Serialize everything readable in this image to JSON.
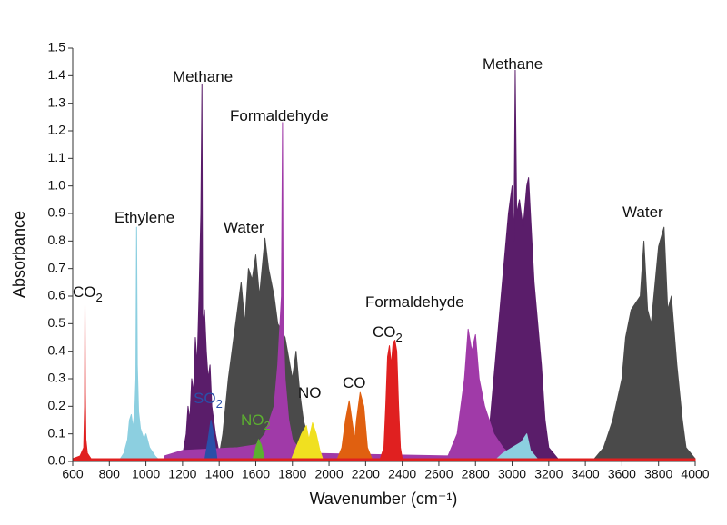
{
  "chart_data": {
    "type": "area",
    "x_label": "Wavenumber (cm⁻¹)",
    "y_label": "Absorbance",
    "xlim": [
      600,
      4000
    ],
    "xticks": [
      600,
      800,
      1000,
      1200,
      1400,
      1600,
      1800,
      2000,
      2200,
      2400,
      2600,
      2800,
      3000,
      3200,
      3400,
      3600,
      3800,
      4000
    ],
    "ylim": [
      0,
      1.5
    ],
    "yticks": [
      {
        "value": 0,
        "label": "0.0"
      },
      0.1,
      0.2,
      0.3,
      0.4,
      0.5,
      0.6,
      0.7,
      0.8,
      0.9,
      {
        "value": 1,
        "label": "1.0"
      },
      1.1,
      1.2,
      1.3,
      1.4,
      1.5
    ],
    "series": [
      {
        "color": "#4a4a4a",
        "x": [
          1400,
          1420,
          1450,
          1480,
          1500,
          1520,
          1540,
          1560,
          1580,
          1600,
          1620,
          1650,
          1670,
          1700,
          1720,
          1760,
          1800,
          1820,
          1840,
          1860,
          1900,
          1950,
          3450,
          3500,
          3550,
          3600,
          3620,
          3650,
          3700,
          3720,
          3740,
          3760,
          3800,
          3830,
          3850,
          3870,
          3900,
          3930,
          3950,
          4000
        ],
        "values": [
          0.02,
          0.1,
          0.3,
          0.45,
          0.55,
          0.65,
          0.5,
          0.7,
          0.66,
          0.75,
          0.6,
          0.81,
          0.7,
          0.6,
          0.5,
          0.45,
          0.3,
          0.4,
          0.25,
          0.15,
          0.05,
          0.01,
          0.01,
          0.05,
          0.15,
          0.3,
          0.45,
          0.55,
          0.6,
          0.8,
          0.55,
          0.5,
          0.78,
          0.85,
          0.55,
          0.6,
          0.35,
          0.15,
          0.05,
          0.01
        ]
      },
      {
        "color": "#5a1d6a",
        "x": [
          1200,
          1220,
          1230,
          1240,
          1250,
          1260,
          1270,
          1280,
          1290,
          1300,
          1306,
          1310,
          1320,
          1330,
          1340,
          1350,
          1360,
          1370,
          1380,
          1400,
          1450,
          2800,
          2850,
          2880,
          2900,
          2920,
          2940,
          2960,
          2980,
          3000,
          3010,
          3017,
          3025,
          3040,
          3060,
          3080,
          3090,
          3100,
          3120,
          3140,
          3160,
          3180,
          3200,
          3250
        ],
        "values": [
          0.02,
          0.1,
          0.2,
          0.15,
          0.3,
          0.25,
          0.45,
          0.35,
          0.6,
          0.9,
          1.37,
          0.5,
          0.55,
          0.4,
          0.3,
          0.35,
          0.2,
          0.15,
          0.1,
          0.03,
          0.01,
          0.01,
          0.05,
          0.15,
          0.3,
          0.45,
          0.6,
          0.75,
          0.9,
          1.0,
          0.8,
          1.42,
          0.9,
          0.95,
          0.85,
          1.0,
          1.03,
          0.9,
          0.65,
          0.5,
          0.35,
          0.15,
          0.05,
          0.01
        ]
      },
      {
        "color": "#a03aa8",
        "x": [
          1100,
          1200,
          1500,
          1600,
          1650,
          1700,
          1720,
          1740,
          1746,
          1750,
          1760,
          1780,
          1800,
          1850,
          2650,
          2700,
          2740,
          2760,
          2780,
          2800,
          2820,
          2850,
          2900,
          2950,
          3000
        ],
        "values": [
          0.02,
          0.04,
          0.05,
          0.06,
          0.1,
          0.2,
          0.35,
          0.6,
          1.23,
          0.5,
          0.3,
          0.15,
          0.08,
          0.03,
          0.02,
          0.1,
          0.3,
          0.48,
          0.4,
          0.46,
          0.3,
          0.2,
          0.1,
          0.05,
          0.02
        ]
      },
      {
        "color": "#8ccfe0",
        "x": [
          850,
          880,
          900,
          910,
          920,
          930,
          940,
          945,
          949,
          953,
          960,
          970,
          980,
          990,
          1000,
          1020,
          1050,
          1080,
          2900,
          2950,
          3000,
          3050,
          3080,
          3100,
          3150
        ],
        "values": [
          0,
          0.03,
          0.08,
          0.15,
          0.17,
          0.12,
          0.2,
          0.3,
          0.85,
          0.35,
          0.18,
          0.12,
          0.1,
          0.08,
          0.1,
          0.05,
          0.02,
          0,
          0,
          0.03,
          0.05,
          0.07,
          0.1,
          0.04,
          0
        ]
      },
      {
        "color": "#2a4fa8",
        "x": [
          1320,
          1340,
          1355,
          1370,
          1390
        ],
        "values": [
          0,
          0.08,
          0.15,
          0.1,
          0
        ]
      },
      {
        "color": "#5cb030",
        "x": [
          1580,
          1600,
          1615,
          1630,
          1650
        ],
        "values": [
          0,
          0.05,
          0.08,
          0.06,
          0
        ]
      },
      {
        "color": "#f0e020",
        "x": [
          1790,
          1820,
          1850,
          1876,
          1890,
          1910,
          1930,
          1950,
          1970
        ],
        "values": [
          0,
          0.05,
          0.1,
          0.13,
          0.08,
          0.14,
          0.1,
          0.04,
          0
        ]
      },
      {
        "color": "#e06010",
        "x": [
          2040,
          2070,
          2090,
          2110,
          2140,
          2150,
          2170,
          2190,
          2210,
          2240
        ],
        "values": [
          0,
          0.05,
          0.15,
          0.22,
          0.08,
          0.15,
          0.25,
          0.2,
          0.05,
          0
        ]
      },
      {
        "color": "#e02020",
        "x": [
          600,
          640,
          660,
          665,
          667,
          669,
          672,
          680,
          700,
          2280,
          2300,
          2310,
          2320,
          2330,
          2340,
          2350,
          2360,
          2370,
          2380,
          2390,
          2400,
          4000
        ],
        "values": [
          0.01,
          0.02,
          0.05,
          0.2,
          0.57,
          0.25,
          0.08,
          0.03,
          0.01,
          0.01,
          0.05,
          0.2,
          0.38,
          0.42,
          0.35,
          0.43,
          0.44,
          0.4,
          0.2,
          0.05,
          0.01,
          0.01
        ]
      }
    ],
    "annotations": [
      {
        "text": "CO",
        "sub": "2"
      },
      {
        "text": "Ethylene"
      },
      {
        "text": "Methane"
      },
      {
        "text": "Formaldehyde"
      },
      {
        "text": "Water"
      },
      {
        "text": "SO",
        "sub": "2",
        "color": "#2a4fa8"
      },
      {
        "text": "NO",
        "sub": "2",
        "color": "#5cb030"
      },
      {
        "text": "NO"
      },
      {
        "text": "CO"
      },
      {
        "text": "CO",
        "sub": "2"
      },
      {
        "text": "Formaldehyde"
      },
      {
        "text": "Methane"
      },
      {
        "text": "Water"
      }
    ]
  }
}
